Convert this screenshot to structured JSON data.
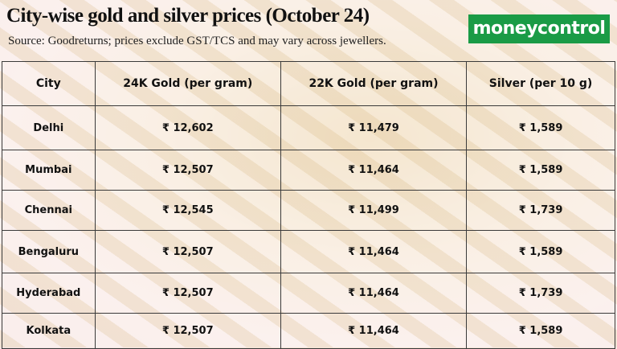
{
  "header": {
    "title": "City-wise gold and silver prices (October 24)",
    "source": "Source: Goodreturns; prices exclude GST/TCS and may vary across jewellers.",
    "logo": "moneycontrol"
  },
  "table": {
    "columns": [
      "City",
      "24K Gold (per gram)",
      "22K Gold (per gram)",
      "Silver (per 10 g)"
    ],
    "rows": [
      [
        "Delhi",
        "₹ 12,602",
        "₹ 11,479",
        "₹ 1,589"
      ],
      [
        "Mumbai",
        "₹ 12,507",
        "₹ 11,464",
        "₹ 1,589"
      ],
      [
        "Chennai",
        "₹ 12,545",
        "₹ 11,499",
        "₹ 1,739"
      ],
      [
        "Bengaluru",
        "₹ 12,507",
        "₹ 11,464",
        "₹ 1,589"
      ],
      [
        "Hyderabad",
        "₹ 12,507",
        "₹ 11,464",
        "₹ 1,739"
      ],
      [
        "Kolkata",
        "₹ 12,507",
        "₹ 11,464",
        "₹ 1,589"
      ]
    ]
  }
}
